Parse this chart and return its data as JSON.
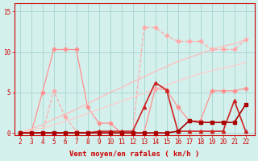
{
  "title": "",
  "xlabel": "Vent moyen/en rafales ( kn/h )",
  "background_color": "#d4f0ec",
  "grid_color": "#aad8d4",
  "x_values": [
    2,
    3,
    4,
    5,
    6,
    7,
    8,
    9,
    10,
    11,
    12,
    13,
    14,
    15,
    16,
    17,
    18,
    19,
    20,
    21,
    22
  ],
  "ylim": [
    -0.3,
    16
  ],
  "xlim": [
    1.5,
    22.8
  ],
  "yticks": [
    0,
    5,
    10,
    15
  ],
  "lines": [
    {
      "y": [
        0,
        0,
        0,
        5.2,
        2.0,
        0.2,
        0.0,
        0.0,
        0.0,
        0.0,
        0.0,
        13.0,
        13.0,
        12.0,
        11.3,
        11.3,
        11.3,
        10.3,
        10.3,
        10.3,
        11.5
      ],
      "color": "#ffaaaa",
      "linewidth": 0.9,
      "linestyle": "--",
      "marker": "D",
      "markersize": 2.5
    },
    {
      "y": [
        0,
        0,
        5.0,
        10.3,
        10.3,
        10.3,
        3.2,
        1.2,
        1.2,
        0.0,
        0.0,
        0.0,
        5.5,
        5.3,
        3.2,
        1.5,
        1.5,
        5.2,
        5.2,
        5.2,
        5.5
      ],
      "color": "#ff9090",
      "linewidth": 0.9,
      "linestyle": "-",
      "marker": "D",
      "markersize": 2.5
    },
    {
      "y": [
        0,
        0.5,
        1.0,
        1.7,
        2.3,
        2.9,
        3.6,
        4.3,
        5.0,
        5.6,
        6.3,
        6.9,
        7.6,
        8.2,
        8.8,
        9.3,
        9.8,
        10.3,
        10.7,
        11.0,
        11.5
      ],
      "color": "#ffbbbb",
      "linewidth": 0.9,
      "linestyle": "-",
      "marker": null,
      "markersize": 0
    },
    {
      "y": [
        0,
        0.3,
        0.6,
        1.0,
        1.4,
        1.9,
        2.4,
        2.9,
        3.4,
        3.9,
        4.4,
        4.9,
        5.4,
        5.9,
        6.4,
        6.9,
        7.3,
        7.7,
        8.0,
        8.3,
        8.7
      ],
      "color": "#ffcccc",
      "linewidth": 0.9,
      "linestyle": "-",
      "marker": null,
      "markersize": 0
    },
    {
      "y": [
        0,
        0.0,
        0.0,
        0.0,
        0.0,
        0.0,
        0.0,
        0.2,
        0.2,
        0.2,
        0.2,
        3.2,
        6.2,
        5.3,
        0.2,
        0.2,
        0.2,
        0.2,
        0.2,
        4.0,
        0.2
      ],
      "color": "#cc2222",
      "linewidth": 1.2,
      "linestyle": "-",
      "marker": "^",
      "markersize": 3.0
    },
    {
      "y": [
        0,
        0,
        0,
        0,
        0,
        0,
        0,
        0,
        0,
        0,
        0,
        0,
        0,
        0,
        0.2,
        1.5,
        1.3,
        1.3,
        1.3,
        1.3,
        3.5
      ],
      "color": "#aa0000",
      "linewidth": 1.2,
      "linestyle": "-",
      "marker": "s",
      "markersize": 2.5
    }
  ],
  "xlabel_color": "#cc0000",
  "tick_color": "#cc0000",
  "axis_color": "#cc0000",
  "label_fontsize": 6.5,
  "tick_fontsize": 5.5
}
